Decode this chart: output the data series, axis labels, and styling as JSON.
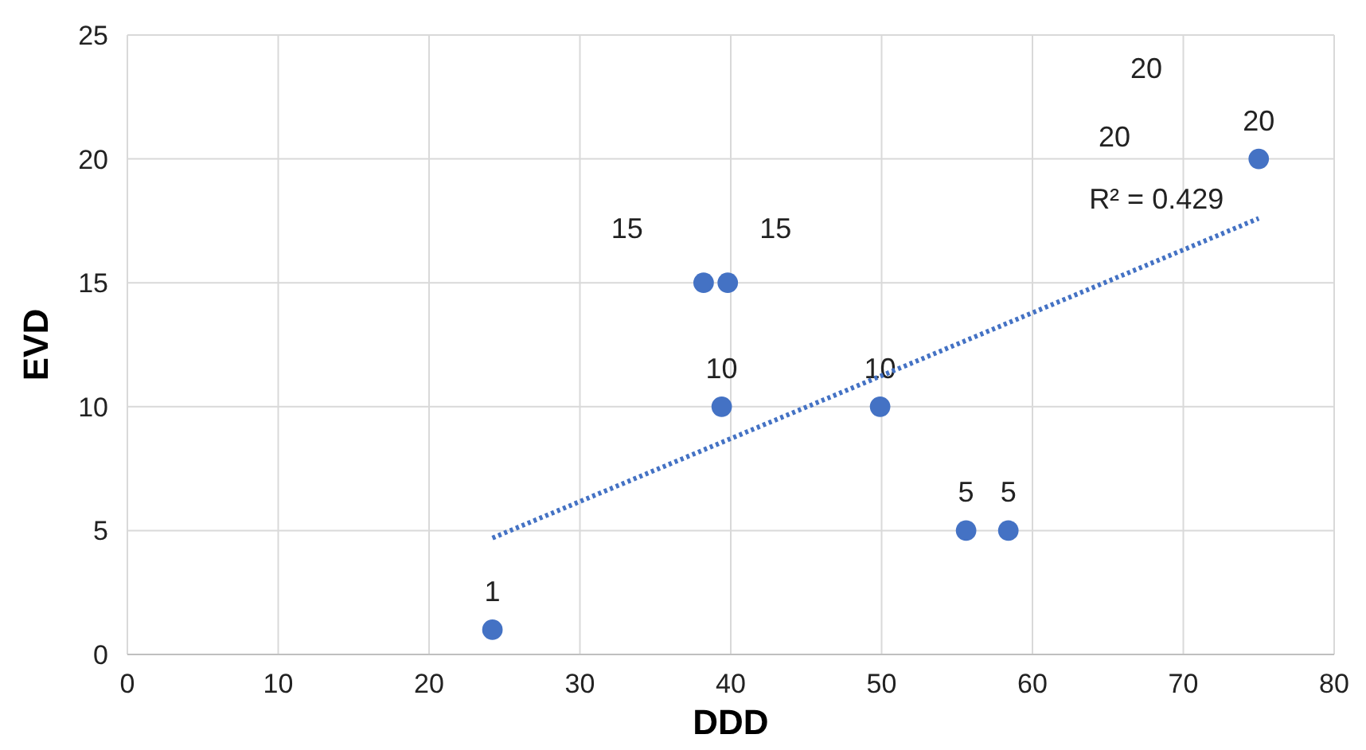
{
  "chart_data": {
    "type": "scatter",
    "xlabel": "DDD",
    "ylabel": "EVD",
    "xlim": [
      0,
      80
    ],
    "xticks": [
      0,
      10,
      20,
      30,
      40,
      50,
      60,
      70,
      80
    ],
    "ylim": [
      0,
      25
    ],
    "yticks": [
      0,
      5,
      10,
      15,
      20,
      25
    ],
    "grid": true,
    "marker": "circle",
    "annotations": [
      {
        "text": "R² = 0.429",
        "x": 75,
        "y": 17.6
      },
      "20",
      "20"
    ],
    "series": [
      {
        "color": "#4472c4",
        "x": [
          24.2,
          38.2,
          39.8,
          39.4,
          49.9,
          55.6,
          58.4,
          75
        ],
        "values": [
          1,
          15,
          15,
          10,
          10,
          5,
          5,
          20
        ],
        "value_labels": [
          "1",
          "15",
          "15",
          "10",
          "10",
          "5",
          "5",
          "20"
        ]
      },
      {
        "type": "line",
        "color": "#4472c4",
        "line_style": "dotted",
        "marker": "none",
        "x": [
          24.2,
          75
        ],
        "values": [
          4.7,
          17.6
        ]
      }
    ]
  }
}
